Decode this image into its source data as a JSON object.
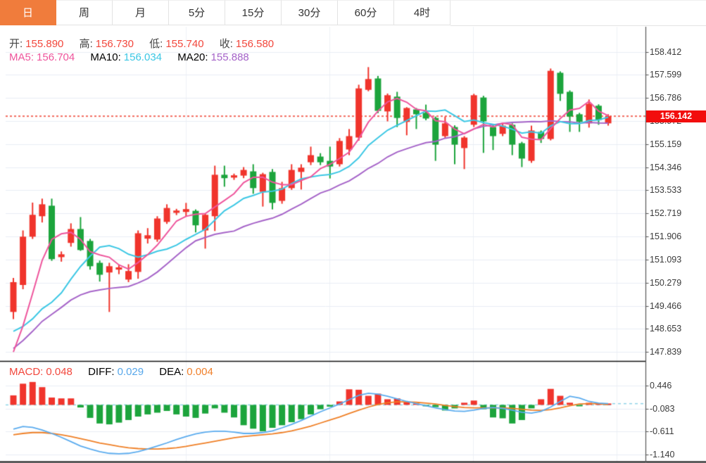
{
  "tabs": [
    {
      "id": "day",
      "label": "日",
      "active": true
    },
    {
      "id": "week",
      "label": "周",
      "active": false
    },
    {
      "id": "month",
      "label": "月",
      "active": false
    },
    {
      "id": "5min",
      "label": "5分",
      "active": false
    },
    {
      "id": "15min",
      "label": "15分",
      "active": false
    },
    {
      "id": "30min",
      "label": "30分",
      "active": false
    },
    {
      "id": "60min",
      "label": "60分",
      "active": false
    },
    {
      "id": "4hour",
      "label": "4时",
      "active": false
    }
  ],
  "ohlc_legend": {
    "open_label": "开:",
    "open": "155.890",
    "high_label": "高:",
    "high": "156.730",
    "low_label": "低:",
    "low": "155.740",
    "close_label": "收:",
    "close": "156.580"
  },
  "ma_legend": {
    "ma5_label": "MA5:",
    "ma5": "156.704",
    "ma10_label": "MA10:",
    "ma10": "156.034",
    "ma20_label": "MA20:",
    "ma20": "155.888"
  },
  "macd_legend": {
    "macd_label": "MACD:",
    "macd": "0.048",
    "diff_label": "DIFF:",
    "diff": "0.029",
    "dea_label": "DEA:",
    "dea": "0.004"
  },
  "price_badge": "156.142",
  "main_axis": {
    "ticks": [
      "158.412",
      "157.599",
      "156.786",
      "155.972",
      "155.159",
      "154.346",
      "153.533",
      "152.719",
      "151.906",
      "151.093",
      "150.279",
      "149.466",
      "148.653",
      "147.839"
    ]
  },
  "macd_axis": {
    "ticks": [
      "0.446",
      "-0.083",
      "-0.611",
      "-1.140"
    ]
  },
  "colors": {
    "up": "#f0342c",
    "down": "#1ca43c",
    "ma5": "#ee559c",
    "ma10": "#3bc7e4",
    "ma20": "#a563c8",
    "diff_line": "#5aabee",
    "dea_line": "#ef7f25",
    "badge_bg": "#f20d0d",
    "price_line": "#f2695c",
    "grid": "#e9edf4",
    "vgrid": "#eef1f6",
    "axis_line": "#555555",
    "panel_divider": "#111111",
    "bottom_border": "#111111",
    "tab_active_bg": "#f07c3c",
    "legend_label": "#444444",
    "legend_value_red": "#f2473c",
    "diff_text": "#57a7ea",
    "dea_text": "#f0802b",
    "macd_zero_dash": "#8fd4e8"
  },
  "chart_data": {
    "type": "candlestick",
    "title": "Daily candlestick chart with MA5/MA10/MA20 overlays and MACD sub-chart",
    "x_labels_visible": false,
    "price_axis_range": [
      147.839,
      158.412
    ],
    "macd_axis_range": [
      -1.14,
      0.446
    ],
    "current_price": 156.142,
    "candles_ohlc": [
      [
        149.25,
        150.45,
        149.0,
        150.3
      ],
      [
        150.2,
        152.12,
        150.05,
        151.9
      ],
      [
        151.9,
        153.1,
        151.82,
        152.67
      ],
      [
        152.62,
        153.24,
        152.4,
        153.04
      ],
      [
        152.99,
        153.24,
        151.05,
        151.11
      ],
      [
        151.18,
        151.38,
        151.02,
        151.28
      ],
      [
        151.68,
        152.37,
        151.55,
        152.17
      ],
      [
        152.17,
        152.59,
        151.4,
        151.43
      ],
      [
        151.75,
        151.82,
        150.74,
        150.86
      ],
      [
        150.98,
        151.06,
        150.32,
        150.56
      ],
      [
        150.64,
        150.98,
        149.25,
        150.86
      ],
      [
        150.74,
        150.92,
        150.58,
        150.82
      ],
      [
        150.39,
        150.93,
        150.3,
        150.69
      ],
      [
        150.66,
        152.12,
        150.42,
        152.02
      ],
      [
        151.83,
        152.2,
        151.66,
        151.95
      ],
      [
        151.8,
        152.62,
        151.72,
        152.54
      ],
      [
        152.42,
        153.04,
        152.35,
        152.91
      ],
      [
        152.74,
        152.88,
        152.66,
        152.82
      ],
      [
        152.77,
        153.09,
        152.6,
        152.87
      ],
      [
        152.81,
        152.86,
        152.05,
        152.3
      ],
      [
        152.12,
        152.72,
        151.48,
        152.67
      ],
      [
        152.62,
        154.4,
        152.1,
        154.08
      ],
      [
        154.08,
        154.4,
        153.66,
        153.96
      ],
      [
        153.98,
        154.12,
        153.9,
        154.06
      ],
      [
        154.05,
        154.35,
        153.96,
        154.25
      ],
      [
        154.2,
        154.45,
        153.41,
        153.61
      ],
      [
        153.48,
        154.15,
        152.96,
        154.1
      ],
      [
        154.18,
        154.28,
        152.86,
        153.09
      ],
      [
        153.16,
        153.83,
        153.06,
        153.61
      ],
      [
        153.61,
        154.45,
        153.55,
        154.25
      ],
      [
        154.18,
        154.45,
        153.56,
        154.33
      ],
      [
        154.52,
        155.07,
        154.42,
        154.77
      ],
      [
        154.72,
        154.84,
        154.42,
        154.52
      ],
      [
        154.57,
        155.07,
        153.95,
        154.37
      ],
      [
        154.45,
        155.37,
        154.37,
        155.27
      ],
      [
        154.97,
        155.69,
        154.77,
        155.44
      ],
      [
        155.39,
        157.25,
        155.28,
        157.12
      ],
      [
        157.07,
        157.87,
        157.02,
        157.45
      ],
      [
        157.47,
        157.56,
        156.25,
        156.33
      ],
      [
        156.31,
        156.94,
        155.96,
        156.88
      ],
      [
        156.83,
        157.0,
        155.76,
        156.08
      ],
      [
        155.94,
        156.46,
        155.47,
        156.43
      ],
      [
        156.38,
        156.43,
        155.69,
        156.21
      ],
      [
        156.26,
        156.55,
        156.0,
        156.06
      ],
      [
        156.08,
        156.13,
        154.57,
        155.14
      ],
      [
        155.44,
        156.13,
        155.38,
        155.89
      ],
      [
        155.76,
        155.82,
        154.45,
        155.14
      ],
      [
        155.02,
        155.44,
        154.28,
        155.39
      ],
      [
        155.84,
        156.93,
        155.76,
        156.88
      ],
      [
        156.8,
        156.86,
        154.85,
        155.96
      ],
      [
        155.76,
        155.82,
        154.95,
        155.44
      ],
      [
        155.52,
        155.89,
        155.44,
        155.81
      ],
      [
        155.84,
        155.89,
        154.77,
        155.14
      ],
      [
        155.19,
        155.24,
        154.35,
        154.65
      ],
      [
        154.57,
        155.81,
        154.5,
        155.64
      ],
      [
        155.59,
        155.64,
        155.2,
        155.34
      ],
      [
        155.34,
        157.82,
        155.29,
        157.74
      ],
      [
        157.67,
        157.72,
        156.68,
        156.93
      ],
      [
        157.0,
        157.05,
        155.59,
        156.13
      ],
      [
        156.21,
        156.26,
        155.59,
        155.94
      ],
      [
        155.89,
        156.73,
        155.74,
        156.58
      ],
      [
        156.51,
        156.56,
        155.84,
        156.01
      ],
      [
        155.89,
        156.21,
        155.81,
        156.14
      ]
    ],
    "ma_warmup_closes": [
      146.5,
      146.3,
      146.2,
      146.0,
      146.2,
      146.4,
      147.0,
      147.8,
      148.6,
      149.3,
      149.8,
      150.2,
      150.0,
      149.5,
      148.8,
      148.0,
      147.3,
      147.0,
      147.2,
      147.4
    ],
    "macd": {
      "bars": [
        0.22,
        0.49,
        0.53,
        0.41,
        0.17,
        0.15,
        0.15,
        -0.06,
        -0.3,
        -0.43,
        -0.45,
        -0.41,
        -0.35,
        -0.27,
        -0.22,
        -0.18,
        -0.14,
        -0.22,
        -0.27,
        -0.3,
        -0.2,
        -0.08,
        -0.18,
        -0.29,
        -0.47,
        -0.55,
        -0.61,
        -0.53,
        -0.47,
        -0.4,
        -0.33,
        -0.22,
        -0.1,
        -0.04,
        0.08,
        0.36,
        0.35,
        0.21,
        0.26,
        0.13,
        0.15,
        0.06,
        0.02,
        -0.03,
        -0.05,
        -0.13,
        -0.08,
        0.05,
        0.1,
        -0.1,
        -0.29,
        -0.31,
        -0.43,
        -0.35,
        -0.08,
        0.13,
        0.37,
        0.21,
        0.05,
        -0.02,
        0.048,
        0.03,
        0.02
      ],
      "diff": [
        -0.56,
        -0.5,
        -0.52,
        -0.58,
        -0.66,
        -0.75,
        -0.85,
        -0.95,
        -1.02,
        -1.08,
        -1.12,
        -1.13,
        -1.12,
        -1.08,
        -1.02,
        -0.95,
        -0.88,
        -0.8,
        -0.73,
        -0.67,
        -0.63,
        -0.61,
        -0.61,
        -0.63,
        -0.66,
        -0.66,
        -0.64,
        -0.6,
        -0.53,
        -0.45,
        -0.36,
        -0.26,
        -0.16,
        -0.07,
        0.02,
        0.12,
        0.22,
        0.27,
        0.25,
        0.2,
        0.14,
        0.08,
        0.03,
        -0.02,
        -0.07,
        -0.11,
        -0.14,
        -0.15,
        -0.12,
        -0.08,
        -0.06,
        -0.08,
        -0.12,
        -0.17,
        -0.19,
        -0.15,
        -0.05,
        0.08,
        0.2,
        0.16,
        0.08,
        0.04,
        0.029
      ],
      "dea": [
        -0.69,
        -0.66,
        -0.64,
        -0.64,
        -0.66,
        -0.69,
        -0.73,
        -0.78,
        -0.83,
        -0.88,
        -0.92,
        -0.96,
        -0.99,
        -1.01,
        -1.02,
        -1.02,
        -1.01,
        -0.99,
        -0.96,
        -0.92,
        -0.88,
        -0.84,
        -0.8,
        -0.76,
        -0.73,
        -0.71,
        -0.69,
        -0.67,
        -0.64,
        -0.6,
        -0.55,
        -0.49,
        -0.42,
        -0.35,
        -0.28,
        -0.2,
        -0.12,
        -0.05,
        0.01,
        0.05,
        0.07,
        0.07,
        0.06,
        0.04,
        0.02,
        -0.01,
        -0.04,
        -0.06,
        -0.07,
        -0.07,
        -0.07,
        -0.07,
        -0.08,
        -0.1,
        -0.12,
        -0.13,
        -0.11,
        -0.07,
        -0.02,
        0.02,
        0.03,
        0.03,
        0.004
      ]
    }
  }
}
